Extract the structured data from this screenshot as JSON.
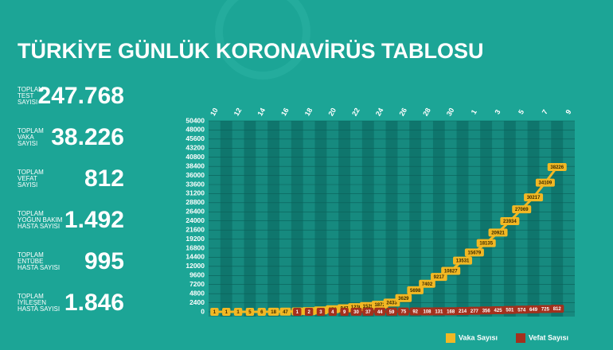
{
  "header": {
    "title": "TÜRKİYE GÜNLÜK KORONAVİRÜS TABLOSU"
  },
  "stats": [
    {
      "label": [
        "TOPLAM",
        "TEST",
        "SAYISI"
      ],
      "value": "247.768"
    },
    {
      "label": [
        "TOPLAM",
        "VAKA",
        "SAYISI"
      ],
      "value": "38.226"
    },
    {
      "label": [
        "TOPLAM",
        "VEFAT",
        "SAYISI"
      ],
      "value": "812"
    },
    {
      "label": [
        "TOPLAM",
        "YOĞUN BAKIM",
        "HASTA SAYISI"
      ],
      "value": "1.492"
    },
    {
      "label": [
        "TOPLAM",
        "ENTÜBE",
        "HASTA SAYISI"
      ],
      "value": "995"
    },
    {
      "label": [
        "TOPLAM",
        "İYİLEŞEN",
        "HASTA SAYISI"
      ],
      "value": "1.846"
    }
  ],
  "chart_data": {
    "type": "line",
    "categories": [
      "10",
      null,
      "12",
      null,
      "14",
      null,
      "16",
      null,
      "18",
      null,
      "20",
      null,
      "22",
      null,
      "24",
      null,
      "26",
      null,
      "28",
      null,
      "30",
      null,
      "1",
      null,
      "3",
      null,
      "5",
      null,
      "7",
      null,
      "9"
    ],
    "series": [
      {
        "name": "Vaka Sayısı",
        "color": "#f2b824",
        "values": [
          1,
          1,
          1,
          5,
          6,
          18,
          47,
          98,
          191,
          359,
          670,
          947,
          1236,
          1529,
          1872,
          2433,
          3629,
          5698,
          7402,
          9217,
          10827,
          13531,
          15679,
          18135,
          20921,
          23934,
          27069,
          30217,
          34109,
          38226,
          null
        ]
      },
      {
        "name": "Vefat Sayısı",
        "color": "#a3301d",
        "values": [
          null,
          null,
          null,
          null,
          null,
          null,
          null,
          1,
          2,
          3,
          4,
          9,
          30,
          37,
          44,
          59,
          75,
          92,
          108,
          131,
          168,
          214,
          277,
          356,
          425,
          501,
          574,
          649,
          725,
          812,
          null
        ]
      }
    ],
    "ylim": [
      0,
      50400
    ],
    "yticks": [
      0,
      2400,
      4800,
      7200,
      9600,
      12000,
      14400,
      16800,
      19200,
      21600,
      24000,
      26400,
      28800,
      31200,
      33600,
      36000,
      38400,
      40800,
      43200,
      45600,
      48000,
      50400
    ],
    "legend": "bottom-right"
  }
}
